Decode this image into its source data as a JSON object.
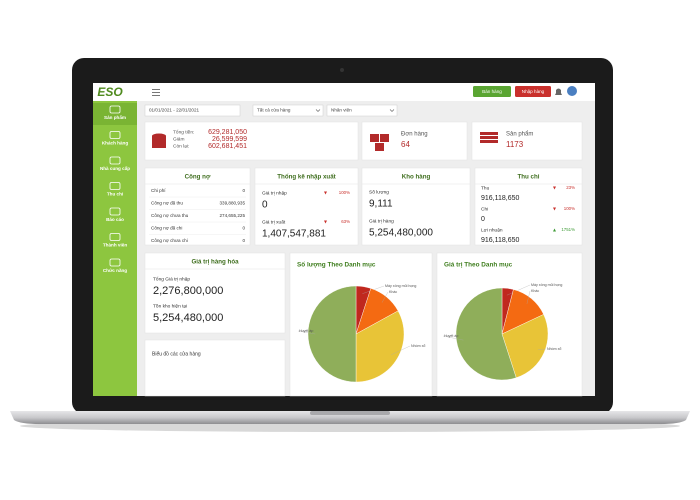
{
  "header": {
    "logo": "ESO",
    "sell_button": "Bán hàng",
    "import_button": "Nhập hàng"
  },
  "sidebar": [
    "Sản phẩm",
    "Khách hàng",
    "Nhà cung cấp",
    "Thu chi",
    "Báo cáo",
    "Thành viên",
    "Chức năng"
  ],
  "filters": {
    "date_range": "01/01/2021 - 22/01/2021",
    "store": "Tất cả cửa hàng",
    "staff": "Nhân viên"
  },
  "summary": {
    "totals": [
      {
        "label": "Tổng tiền:",
        "value": "629,281,050"
      },
      {
        "label": "Giảm",
        "value": "26,599,599"
      },
      {
        "label": "Còn lại:",
        "value": "602,681,451"
      }
    ],
    "orders": {
      "label": "Đơn hàng",
      "value": "64"
    },
    "products": {
      "label": "Sản phẩm",
      "value": "1173"
    }
  },
  "debt": {
    "title": "Công nợ",
    "rows": [
      {
        "label": "Chi phí",
        "value": "0"
      },
      {
        "label": "Công nợ đã thu",
        "value": "339,880,935"
      },
      {
        "label": "Công nợ chưa thu",
        "value": "274,655,225"
      },
      {
        "label": "Công nợ đã chi",
        "value": "0"
      },
      {
        "label": "Công nợ chưa chi",
        "value": "0"
      }
    ]
  },
  "import_export": {
    "title": "Thống kê nhập xuất",
    "rows": [
      {
        "label": "Giá trị nhập",
        "change": "100%",
        "direction": "down",
        "value": "0"
      },
      {
        "label": "Giá trị xuất",
        "change": "63%",
        "direction": "down",
        "value": "1,407,547,881"
      }
    ]
  },
  "warehouse": {
    "title": "Kho hàng",
    "rows": [
      {
        "label": "Số lượng",
        "value": "9,111"
      },
      {
        "label": "Giá trị hàng",
        "value": "5,254,480,000"
      }
    ]
  },
  "cashflow": {
    "title": "Thu chi",
    "rows": [
      {
        "label": "Thu",
        "change": "23%",
        "direction": "down",
        "value": "916,118,650"
      },
      {
        "label": "Chi",
        "change": "100%",
        "direction": "down",
        "value": "0"
      },
      {
        "label": "Lợi nhuận",
        "change": "1751%",
        "direction": "up",
        "value": "916,118,650"
      }
    ]
  },
  "goods_value": {
    "title": "Giá trị hàng hóa",
    "rows": [
      {
        "label": "Tổng Giá trị nhập",
        "value": "2,276,800,000"
      },
      {
        "label": "Tồn kho hiện tại",
        "value": "5,254,480,000"
      }
    ]
  },
  "store_chart": {
    "title": "Biểu đồ các cửa hàng"
  },
  "chart_data": [
    {
      "type": "pie",
      "title": "Số lượng Theo Danh mục",
      "categories": [
        "Máy xông mũi họng",
        "Khác",
        "Nhóm xổ",
        "Huyết áp"
      ],
      "values": [
        5,
        12,
        33,
        50
      ],
      "colors": [
        "#c0281e",
        "#f46a12",
        "#e8c437",
        "#8fae5a"
      ]
    },
    {
      "type": "pie",
      "title": "Giá trị Theo Danh mục",
      "categories": [
        "Máy xông mũi họng",
        "Khác",
        "Nhóm xổ",
        "Huyết áp"
      ],
      "values": [
        4,
        14,
        27,
        55
      ],
      "colors": [
        "#c0281e",
        "#f46a12",
        "#e8c437",
        "#8fae5a"
      ]
    }
  ]
}
